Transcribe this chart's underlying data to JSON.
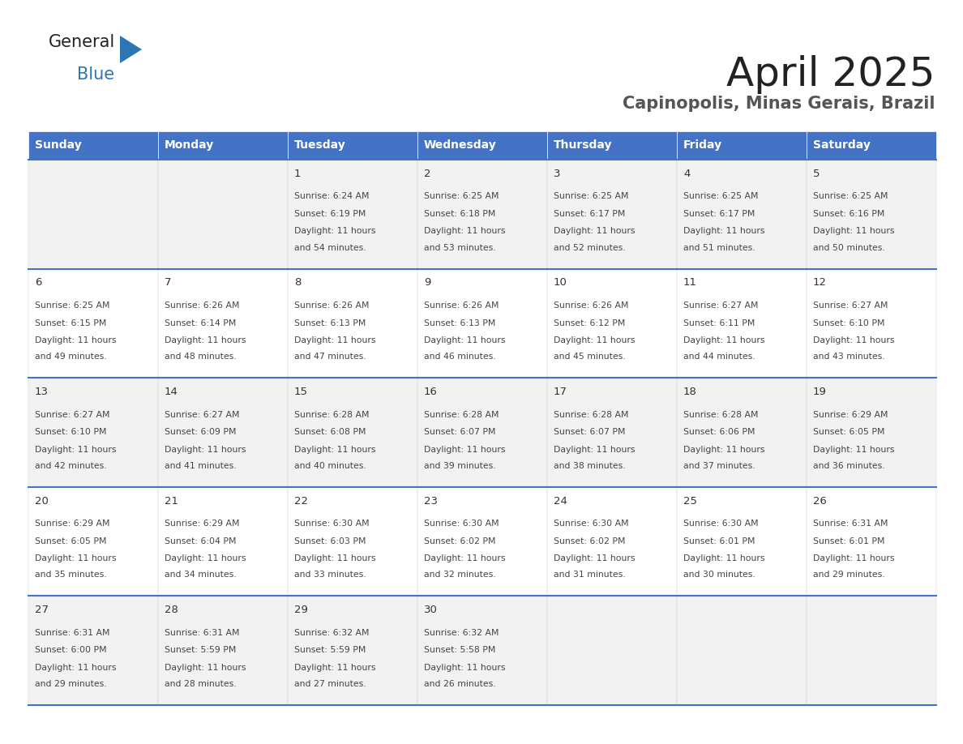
{
  "title": "April 2025",
  "subtitle": "Capinopolis, Minas Gerais, Brazil",
  "days_of_week": [
    "Sunday",
    "Monday",
    "Tuesday",
    "Wednesday",
    "Thursday",
    "Friday",
    "Saturday"
  ],
  "header_bg": "#4472C4",
  "header_text": "#FFFFFF",
  "row_bg_odd": "#F2F2F2",
  "row_bg_even": "#FFFFFF",
  "day_number_color": "#333333",
  "cell_text_color": "#444444",
  "grid_line_color": "#4472C4",
  "title_color": "#222222",
  "subtitle_color": "#555555",
  "logo_general_color": "#222222",
  "logo_blue_color": "#2E75B6",
  "calendar_data": [
    {
      "day": 1,
      "col": 2,
      "row": 0,
      "sunrise": "6:24 AM",
      "sunset": "6:19 PM",
      "daylight_hours": 11,
      "daylight_minutes": 54
    },
    {
      "day": 2,
      "col": 3,
      "row": 0,
      "sunrise": "6:25 AM",
      "sunset": "6:18 PM",
      "daylight_hours": 11,
      "daylight_minutes": 53
    },
    {
      "day": 3,
      "col": 4,
      "row": 0,
      "sunrise": "6:25 AM",
      "sunset": "6:17 PM",
      "daylight_hours": 11,
      "daylight_minutes": 52
    },
    {
      "day": 4,
      "col": 5,
      "row": 0,
      "sunrise": "6:25 AM",
      "sunset": "6:17 PM",
      "daylight_hours": 11,
      "daylight_minutes": 51
    },
    {
      "day": 5,
      "col": 6,
      "row": 0,
      "sunrise": "6:25 AM",
      "sunset": "6:16 PM",
      "daylight_hours": 11,
      "daylight_minutes": 50
    },
    {
      "day": 6,
      "col": 0,
      "row": 1,
      "sunrise": "6:25 AM",
      "sunset": "6:15 PM",
      "daylight_hours": 11,
      "daylight_minutes": 49
    },
    {
      "day": 7,
      "col": 1,
      "row": 1,
      "sunrise": "6:26 AM",
      "sunset": "6:14 PM",
      "daylight_hours": 11,
      "daylight_minutes": 48
    },
    {
      "day": 8,
      "col": 2,
      "row": 1,
      "sunrise": "6:26 AM",
      "sunset": "6:13 PM",
      "daylight_hours": 11,
      "daylight_minutes": 47
    },
    {
      "day": 9,
      "col": 3,
      "row": 1,
      "sunrise": "6:26 AM",
      "sunset": "6:13 PM",
      "daylight_hours": 11,
      "daylight_minutes": 46
    },
    {
      "day": 10,
      "col": 4,
      "row": 1,
      "sunrise": "6:26 AM",
      "sunset": "6:12 PM",
      "daylight_hours": 11,
      "daylight_minutes": 45
    },
    {
      "day": 11,
      "col": 5,
      "row": 1,
      "sunrise": "6:27 AM",
      "sunset": "6:11 PM",
      "daylight_hours": 11,
      "daylight_minutes": 44
    },
    {
      "day": 12,
      "col": 6,
      "row": 1,
      "sunrise": "6:27 AM",
      "sunset": "6:10 PM",
      "daylight_hours": 11,
      "daylight_minutes": 43
    },
    {
      "day": 13,
      "col": 0,
      "row": 2,
      "sunrise": "6:27 AM",
      "sunset": "6:10 PM",
      "daylight_hours": 11,
      "daylight_minutes": 42
    },
    {
      "day": 14,
      "col": 1,
      "row": 2,
      "sunrise": "6:27 AM",
      "sunset": "6:09 PM",
      "daylight_hours": 11,
      "daylight_minutes": 41
    },
    {
      "day": 15,
      "col": 2,
      "row": 2,
      "sunrise": "6:28 AM",
      "sunset": "6:08 PM",
      "daylight_hours": 11,
      "daylight_minutes": 40
    },
    {
      "day": 16,
      "col": 3,
      "row": 2,
      "sunrise": "6:28 AM",
      "sunset": "6:07 PM",
      "daylight_hours": 11,
      "daylight_minutes": 39
    },
    {
      "day": 17,
      "col": 4,
      "row": 2,
      "sunrise": "6:28 AM",
      "sunset": "6:07 PM",
      "daylight_hours": 11,
      "daylight_minutes": 38
    },
    {
      "day": 18,
      "col": 5,
      "row": 2,
      "sunrise": "6:28 AM",
      "sunset": "6:06 PM",
      "daylight_hours": 11,
      "daylight_minutes": 37
    },
    {
      "day": 19,
      "col": 6,
      "row": 2,
      "sunrise": "6:29 AM",
      "sunset": "6:05 PM",
      "daylight_hours": 11,
      "daylight_minutes": 36
    },
    {
      "day": 20,
      "col": 0,
      "row": 3,
      "sunrise": "6:29 AM",
      "sunset": "6:05 PM",
      "daylight_hours": 11,
      "daylight_minutes": 35
    },
    {
      "day": 21,
      "col": 1,
      "row": 3,
      "sunrise": "6:29 AM",
      "sunset": "6:04 PM",
      "daylight_hours": 11,
      "daylight_minutes": 34
    },
    {
      "day": 22,
      "col": 2,
      "row": 3,
      "sunrise": "6:30 AM",
      "sunset": "6:03 PM",
      "daylight_hours": 11,
      "daylight_minutes": 33
    },
    {
      "day": 23,
      "col": 3,
      "row": 3,
      "sunrise": "6:30 AM",
      "sunset": "6:02 PM",
      "daylight_hours": 11,
      "daylight_minutes": 32
    },
    {
      "day": 24,
      "col": 4,
      "row": 3,
      "sunrise": "6:30 AM",
      "sunset": "6:02 PM",
      "daylight_hours": 11,
      "daylight_minutes": 31
    },
    {
      "day": 25,
      "col": 5,
      "row": 3,
      "sunrise": "6:30 AM",
      "sunset": "6:01 PM",
      "daylight_hours": 11,
      "daylight_minutes": 30
    },
    {
      "day": 26,
      "col": 6,
      "row": 3,
      "sunrise": "6:31 AM",
      "sunset": "6:01 PM",
      "daylight_hours": 11,
      "daylight_minutes": 29
    },
    {
      "day": 27,
      "col": 0,
      "row": 4,
      "sunrise": "6:31 AM",
      "sunset": "6:00 PM",
      "daylight_hours": 11,
      "daylight_minutes": 29
    },
    {
      "day": 28,
      "col": 1,
      "row": 4,
      "sunrise": "6:31 AM",
      "sunset": "5:59 PM",
      "daylight_hours": 11,
      "daylight_minutes": 28
    },
    {
      "day": 29,
      "col": 2,
      "row": 4,
      "sunrise": "6:32 AM",
      "sunset": "5:59 PM",
      "daylight_hours": 11,
      "daylight_minutes": 27
    },
    {
      "day": 30,
      "col": 3,
      "row": 4,
      "sunrise": "6:32 AM",
      "sunset": "5:58 PM",
      "daylight_hours": 11,
      "daylight_minutes": 26
    }
  ]
}
